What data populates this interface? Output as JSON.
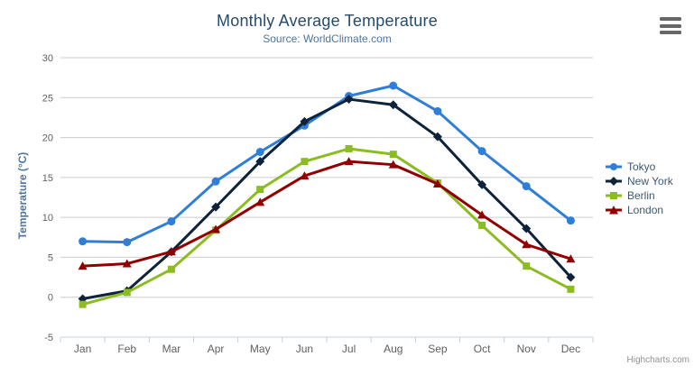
{
  "chart": {
    "title": "Monthly Average Temperature",
    "subtitle": "Source: WorldClimate.com",
    "y_axis_title": "Temperature (°C)",
    "credits": "Highcharts.com",
    "export_menu_icon": "hamburger-icon"
  },
  "chart_data": {
    "type": "line",
    "title": "Monthly Average Temperature",
    "subtitle": "Source: WorldClimate.com",
    "xlabel": "",
    "ylabel": "Temperature (°C)",
    "ylim": [
      -5,
      30
    ],
    "yticks": [
      -5,
      0,
      5,
      10,
      15,
      20,
      25,
      30
    ],
    "grid": true,
    "legend_position": "right-middle-vertical",
    "categories": [
      "Jan",
      "Feb",
      "Mar",
      "Apr",
      "May",
      "Jun",
      "Jul",
      "Aug",
      "Sep",
      "Oct",
      "Nov",
      "Dec"
    ],
    "series": [
      {
        "name": "Tokyo",
        "color": "#2f7ed8",
        "marker": "circle",
        "values": [
          7.0,
          6.9,
          9.5,
          14.5,
          18.2,
          21.5,
          25.2,
          26.5,
          23.3,
          18.3,
          13.9,
          9.6
        ]
      },
      {
        "name": "New York",
        "color": "#0d233a",
        "marker": "diamond",
        "values": [
          -0.2,
          0.8,
          5.7,
          11.3,
          17.0,
          22.0,
          24.8,
          24.1,
          20.1,
          14.1,
          8.6,
          2.5
        ]
      },
      {
        "name": "Berlin",
        "color": "#8bbc21",
        "marker": "square",
        "values": [
          -0.9,
          0.6,
          3.5,
          8.4,
          13.5,
          17.0,
          18.6,
          17.9,
          14.3,
          9.0,
          3.9,
          1.0
        ]
      },
      {
        "name": "London",
        "color": "#910000",
        "marker": "triangle",
        "values": [
          3.9,
          4.2,
          5.7,
          8.5,
          11.9,
          15.2,
          17.0,
          16.6,
          14.2,
          10.3,
          6.6,
          4.8
        ]
      }
    ]
  },
  "colors": {
    "title": "#274b6d",
    "subtitle": "#4d759e",
    "axis_title": "#4d759e",
    "tick_label": "#606060",
    "gridline": "#cccccc",
    "axis_line": "#c0d0e0",
    "legend_text": "#3e576f",
    "credits": "#909090",
    "background": "#ffffff"
  }
}
